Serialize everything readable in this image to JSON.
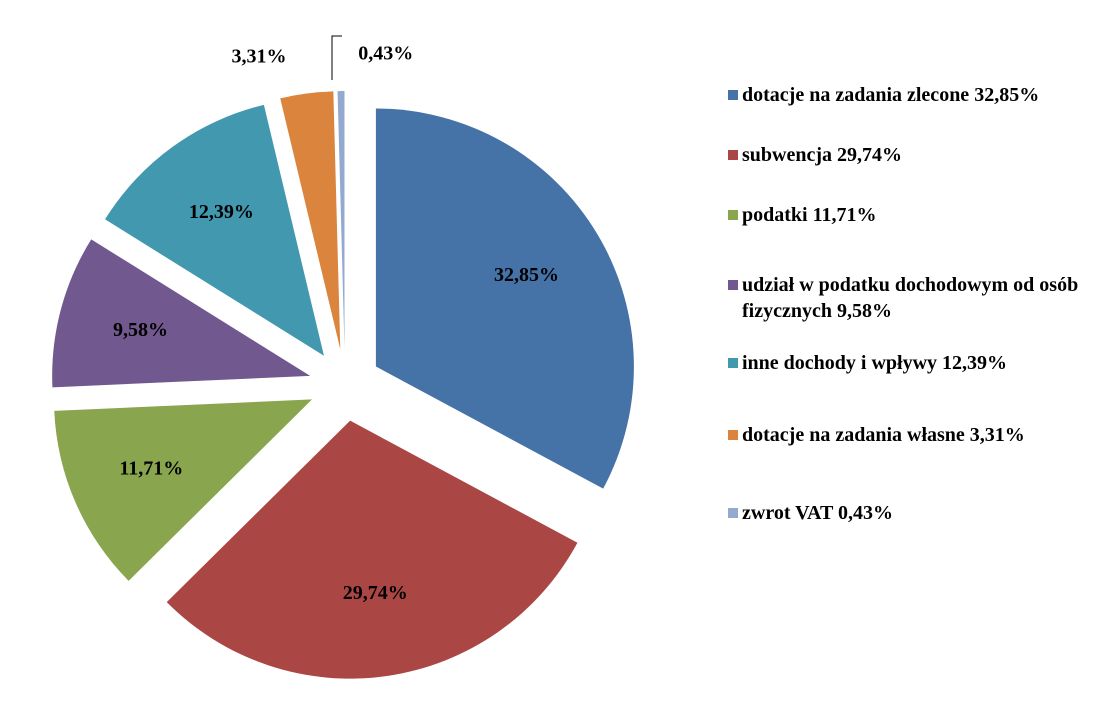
{
  "chart_data": {
    "type": "pie",
    "categories": [
      "dotacje na zadania zlecone 32,85%",
      "subwencja 29,74%",
      "podatki 11,71%",
      "udział w podatku dochodowym od osób fizycznych 9,58%",
      "inne dochody i wpływy 12,39%",
      "dotacje na zadania własne 3,31%",
      "zwrot VAT 0,43%"
    ],
    "values": [
      32.85,
      29.74,
      11.71,
      9.58,
      12.39,
      3.31,
      0.43
    ],
    "value_labels": [
      "32,85%",
      "29,74%",
      "11,71%",
      "9,58%",
      "12,39%",
      "3,31%",
      "0,43%"
    ],
    "colors": [
      "#4572a7",
      "#aa4643",
      "#89a54e",
      "#71588f",
      "#4198af",
      "#db843d",
      "#93a9cf"
    ],
    "legend": "right"
  }
}
